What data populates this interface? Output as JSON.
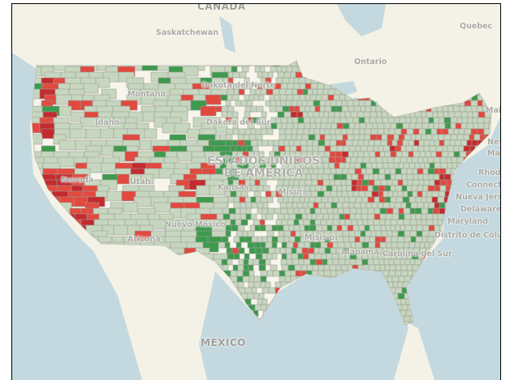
{
  "map": {
    "colors": {
      "land": "#f4f2e7",
      "water": "#c4d9df",
      "county_neutral": "#c7d6bf",
      "county_border": "#9b9f97",
      "county_high": "#e2493f",
      "county_very_high": "#c42a2e",
      "county_low": "#3e9a4e"
    },
    "labels": {
      "canada": "CANADA",
      "saskatchewan": "Saskatchewan",
      "ontario": "Ontario",
      "quebec": "Quebec",
      "maine": "Maine",
      "north_dakota": "Dakota del Norte",
      "south_dakota": "Dakota del Sur",
      "montana": "Montana",
      "idaho": "Idaho",
      "nevada": "Nevada",
      "utah": "Utah",
      "arizona": "Arizona",
      "new_mexico": "Nuevo México",
      "kansas": "Kansas",
      "missouri": "Misuri",
      "mississippi": "Misisipi",
      "alabama": "Alabama",
      "south_carolina": "Carolina del Sur",
      "usa_line1": "ESTADOS UNIDOS",
      "usa_line2": "DE AMÉRICA",
      "new_york": "New",
      "massachusetts": "Mass",
      "rhode_island": "Rhode",
      "connecticut": "Connectic",
      "new_jersey": "Nueva Jersey",
      "delaware": "Delaware",
      "maryland": "Maryland",
      "dc": "Distrito de Columbia",
      "mexico": "MÉXICO"
    }
  }
}
